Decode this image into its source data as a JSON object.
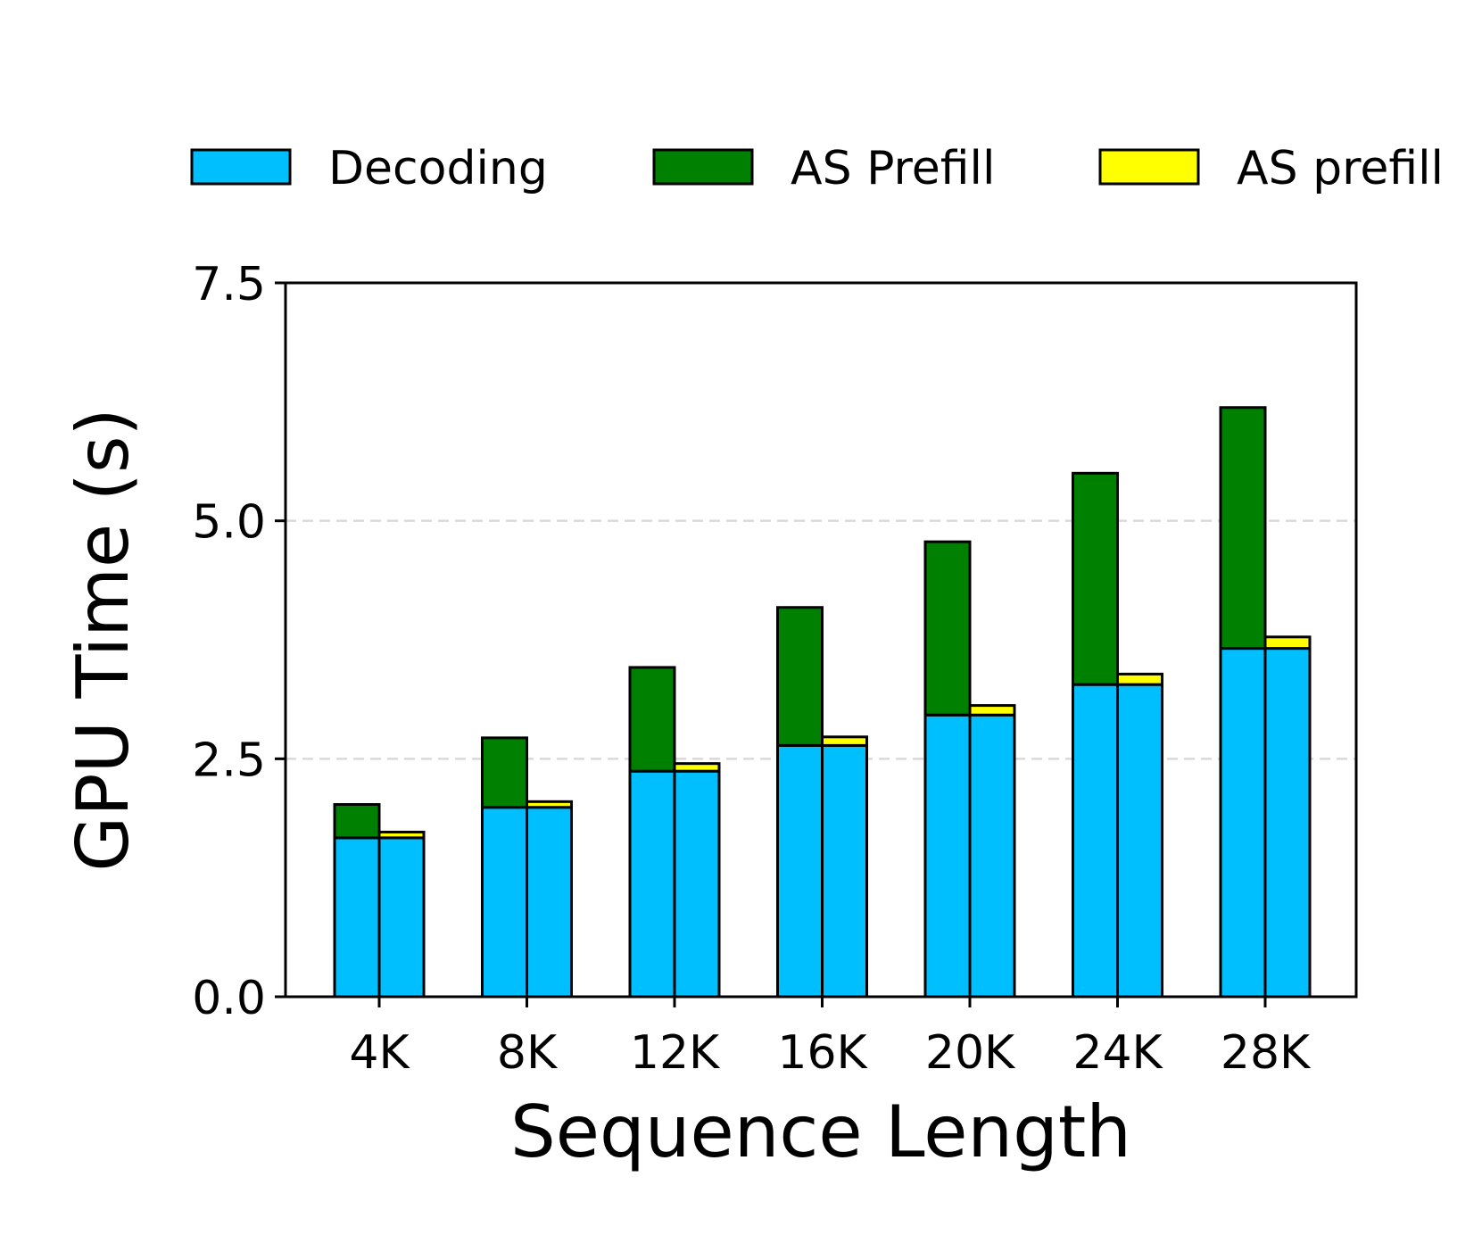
{
  "chart_data": {
    "type": "bar",
    "stacked": true,
    "grouped": true,
    "title": "",
    "xlabel": "Sequence Length",
    "ylabel": "GPU Time (s)",
    "ylim": [
      0,
      7.5
    ],
    "yticks": [
      "0.0",
      "2.5",
      "5.0",
      "7.5"
    ],
    "ytick_values": [
      0,
      2.5,
      5.0,
      7.5
    ],
    "grid": "horizontal dashed",
    "legend_position": "top",
    "categories": [
      "4K",
      "8K",
      "12K",
      "16K",
      "20K",
      "24K",
      "28K"
    ],
    "series": [
      {
        "name": "Decoding",
        "color": "#00BFFF",
        "group": "both",
        "values": [
          1.67,
          1.99,
          2.37,
          2.64,
          2.96,
          3.28,
          3.66
        ]
      },
      {
        "name": "AS Prefill",
        "color": "#008000",
        "group": "left",
        "values": [
          0.35,
          0.73,
          1.09,
          1.45,
          1.82,
          2.22,
          2.53
        ]
      },
      {
        "name": "AS prefill",
        "color": "#FFFF00",
        "group": "right",
        "values": [
          0.06,
          0.06,
          0.08,
          0.09,
          0.1,
          0.11,
          0.12
        ]
      }
    ]
  }
}
